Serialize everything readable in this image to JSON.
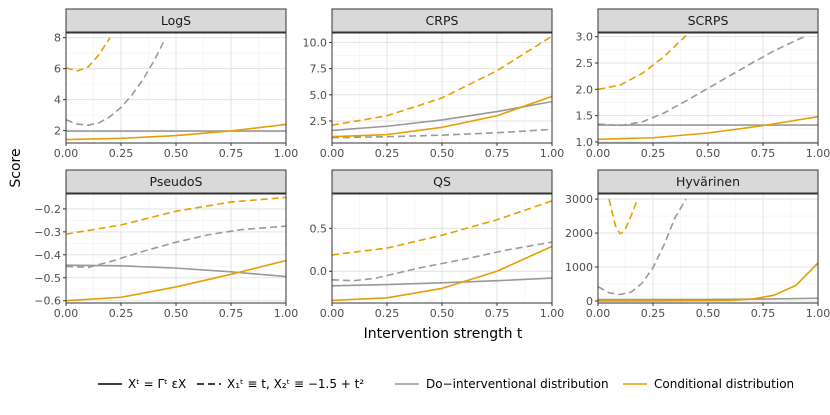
{
  "chart_data": {
    "type": "line",
    "xlabel": "Intervention strength t",
    "ylabel": "Score",
    "colors": {
      "do": "#999999",
      "cond": "#E69F00"
    },
    "panels": [
      {
        "title": "LogS",
        "xlim": [
          0,
          1
        ],
        "ylim": [
          1.2,
          8.3
        ],
        "xticks": [
          0,
          0.25,
          0.5,
          0.75,
          1.0
        ],
        "xtick_labels": [
          "0.00",
          "0.25",
          "0.50",
          "0.75",
          "1.00"
        ],
        "yticks": [
          2,
          4,
          6,
          8
        ],
        "ytick_labels": [
          "2",
          "4",
          "6",
          "8"
        ],
        "series": [
          {
            "name": "do-solid",
            "x": [
              0,
              0.25,
              0.5,
              0.75,
              1.0
            ],
            "y": [
              1.97,
              1.97,
              1.97,
              1.97,
              1.97
            ]
          },
          {
            "name": "do-dashed",
            "x": [
              0,
              0.05,
              0.1,
              0.15,
              0.2,
              0.25,
              0.3,
              0.35,
              0.4,
              0.45
            ],
            "y": [
              2.7,
              2.42,
              2.35,
              2.5,
              2.9,
              3.5,
              4.3,
              5.3,
              6.5,
              7.9
            ]
          },
          {
            "name": "cond-solid",
            "x": [
              0,
              0.25,
              0.5,
              0.75,
              1.0
            ],
            "y": [
              1.42,
              1.5,
              1.68,
              1.98,
              2.4
            ]
          },
          {
            "name": "cond-dashed",
            "x": [
              0,
              0.05,
              0.1,
              0.15,
              0.2
            ],
            "y": [
              6.05,
              5.85,
              6.1,
              6.9,
              8.0
            ]
          }
        ]
      },
      {
        "title": "CRPS",
        "xlim": [
          0,
          1
        ],
        "ylim": [
          0.4,
          10.9
        ],
        "xticks": [
          0,
          0.25,
          0.5,
          0.75,
          1.0
        ],
        "xtick_labels": [
          "0.00",
          "0.25",
          "0.50",
          "0.75",
          "1.00"
        ],
        "yticks": [
          2.5,
          5.0,
          7.5,
          10.0
        ],
        "ytick_labels": [
          "2.5",
          "5.0",
          "7.5",
          "10.0"
        ],
        "series": [
          {
            "name": "do-solid",
            "x": [
              0,
              0.25,
              0.5,
              0.75,
              1.0
            ],
            "y": [
              1.6,
              2.0,
              2.6,
              3.4,
              4.35
            ]
          },
          {
            "name": "do-dashed",
            "x": [
              0,
              0.25,
              0.5,
              0.75,
              1.0
            ],
            "y": [
              0.9,
              1.0,
              1.15,
              1.38,
              1.7
            ]
          },
          {
            "name": "cond-solid",
            "x": [
              0,
              0.25,
              0.5,
              0.75,
              1.0
            ],
            "y": [
              1.0,
              1.2,
              1.9,
              3.0,
              4.85
            ]
          },
          {
            "name": "cond-dashed",
            "x": [
              0,
              0.25,
              0.5,
              0.75,
              1.0
            ],
            "y": [
              2.1,
              3.0,
              4.7,
              7.3,
              10.6
            ]
          }
        ]
      },
      {
        "title": "SCRPS",
        "xlim": [
          0,
          1
        ],
        "ylim": [
          0.98,
          3.07
        ],
        "xticks": [
          0,
          0.25,
          0.5,
          0.75,
          1.0
        ],
        "xtick_labels": [
          "0.00",
          "0.25",
          "0.50",
          "0.75",
          "1.00"
        ],
        "yticks": [
          1.0,
          1.5,
          2.0,
          2.5,
          3.0
        ],
        "ytick_labels": [
          "1.0",
          "1.5",
          "2.0",
          "2.5",
          "3.0"
        ],
        "series": [
          {
            "name": "do-solid",
            "x": [
              0,
              0.25,
              0.5,
              0.75,
              1.0
            ],
            "y": [
              1.32,
              1.32,
              1.32,
              1.32,
              1.32
            ]
          },
          {
            "name": "do-dashed",
            "x": [
              0,
              0.1,
              0.2,
              0.3,
              0.4,
              0.5,
              0.6,
              0.7,
              0.8,
              0.9,
              0.95
            ],
            "y": [
              1.34,
              1.31,
              1.38,
              1.55,
              1.78,
              2.02,
              2.26,
              2.5,
              2.73,
              2.93,
              3.02
            ]
          },
          {
            "name": "cond-solid",
            "x": [
              0,
              0.25,
              0.5,
              0.75,
              1.0
            ],
            "y": [
              1.05,
              1.08,
              1.17,
              1.31,
              1.48
            ]
          },
          {
            "name": "cond-dashed",
            "x": [
              0,
              0.1,
              0.2,
              0.3,
              0.4
            ],
            "y": [
              2.0,
              2.08,
              2.3,
              2.62,
              3.02
            ]
          }
        ]
      },
      {
        "title": "PseudoS",
        "xlim": [
          0,
          1
        ],
        "ylim": [
          -0.61,
          -0.135
        ],
        "xticks": [
          0,
          0.25,
          0.5,
          0.75,
          1.0
        ],
        "xtick_labels": [
          "0.00",
          "0.25",
          "0.50",
          "0.75",
          "1.00"
        ],
        "yticks": [
          -0.2,
          -0.3,
          -0.4,
          -0.5,
          -0.6
        ],
        "ytick_labels": [
          "−0.2",
          "−0.3",
          "−0.4",
          "−0.5",
          "−0.6"
        ],
        "series": [
          {
            "name": "do-solid",
            "x": [
              0,
              0.25,
              0.5,
              0.75,
              1.0
            ],
            "y": [
              -0.445,
              -0.448,
              -0.458,
              -0.474,
              -0.495
            ]
          },
          {
            "name": "do-dashed",
            "x": [
              0,
              0.1,
              0.2,
              0.35,
              0.5,
              0.65,
              0.8,
              1.0
            ],
            "y": [
              -0.45,
              -0.455,
              -0.43,
              -0.385,
              -0.345,
              -0.312,
              -0.29,
              -0.275
            ]
          },
          {
            "name": "cond-solid",
            "x": [
              0,
              0.25,
              0.5,
              0.75,
              1.0
            ],
            "y": [
              -0.6,
              -0.585,
              -0.54,
              -0.485,
              -0.425
            ]
          },
          {
            "name": "cond-dashed",
            "x": [
              0,
              0.25,
              0.5,
              0.75,
              1.0
            ],
            "y": [
              -0.31,
              -0.27,
              -0.21,
              -0.17,
              -0.15
            ]
          }
        ]
      },
      {
        "title": "QS",
        "xlim": [
          0,
          1
        ],
        "ylim": [
          -0.37,
          0.9
        ],
        "xticks": [
          0,
          0.25,
          0.5,
          0.75,
          1.0
        ],
        "xtick_labels": [
          "0.00",
          "0.25",
          "0.50",
          "0.75",
          "1.00"
        ],
        "yticks": [
          0.5,
          0.0
        ],
        "ytick_labels": [
          "0.5",
          "0.0"
        ],
        "series": [
          {
            "name": "do-solid",
            "x": [
              0,
              0.25,
              0.5,
              0.75,
              1.0
            ],
            "y": [
              -0.17,
              -0.155,
              -0.135,
              -0.11,
              -0.08
            ]
          },
          {
            "name": "do-dashed",
            "x": [
              0,
              0.1,
              0.2,
              0.4,
              0.6,
              0.8,
              1.0
            ],
            "y": [
              -0.1,
              -0.11,
              -0.08,
              0.04,
              0.14,
              0.25,
              0.34
            ]
          },
          {
            "name": "cond-solid",
            "x": [
              0,
              0.25,
              0.5,
              0.75,
              1.0
            ],
            "y": [
              -0.34,
              -0.31,
              -0.2,
              0.0,
              0.29
            ]
          },
          {
            "name": "cond-dashed",
            "x": [
              0,
              0.25,
              0.5,
              0.75,
              1.0
            ],
            "y": [
              0.19,
              0.27,
              0.42,
              0.6,
              0.82
            ]
          }
        ]
      },
      {
        "title": "Hyvärinen",
        "xlim": [
          0,
          1
        ],
        "ylim": [
          -60,
          3150
        ],
        "xticks": [
          0,
          0.25,
          0.5,
          0.75,
          1.0
        ],
        "xtick_labels": [
          "0.00",
          "0.25",
          "0.50",
          "0.75",
          "1.00"
        ],
        "yticks": [
          0,
          1000,
          2000,
          3000
        ],
        "ytick_labels": [
          "0",
          "1000",
          "2000",
          "3000"
        ],
        "series": [
          {
            "name": "do-solid",
            "x": [
              0,
              0.25,
              0.5,
              0.75,
              1.0
            ],
            "y": [
              40,
              40,
              44,
              55,
              80
            ]
          },
          {
            "name": "do-dashed",
            "x": [
              0,
              0.05,
              0.1,
              0.15,
              0.2,
              0.25,
              0.3,
              0.35,
              0.4
            ],
            "y": [
              420,
              240,
              190,
              260,
              520,
              980,
              1650,
              2450,
              3000
            ]
          },
          {
            "name": "cond-solid",
            "x": [
              0,
              0.25,
              0.5,
              0.6,
              0.7,
              0.8,
              0.9,
              1.0
            ],
            "y": [
              0,
              0,
              6,
              20,
              55,
              170,
              460,
              1120
            ]
          },
          {
            "name": "cond-dashed",
            "x": [
              0.05,
              0.08,
              0.1,
              0.12,
              0.15,
              0.18
            ],
            "y": [
              3000,
              2200,
              1980,
              2050,
              2500,
              3000
            ]
          }
        ]
      }
    ],
    "legend": {
      "solid_label_html": "Xᵗ = Γᵗ εX",
      "dashed_label_html": "X₁ᵗ ≡ t, X₂ᵗ ≡ −1.5 + t²",
      "do_label": "Do−interventional distribution",
      "cond_label": "Conditional distribution"
    }
  }
}
